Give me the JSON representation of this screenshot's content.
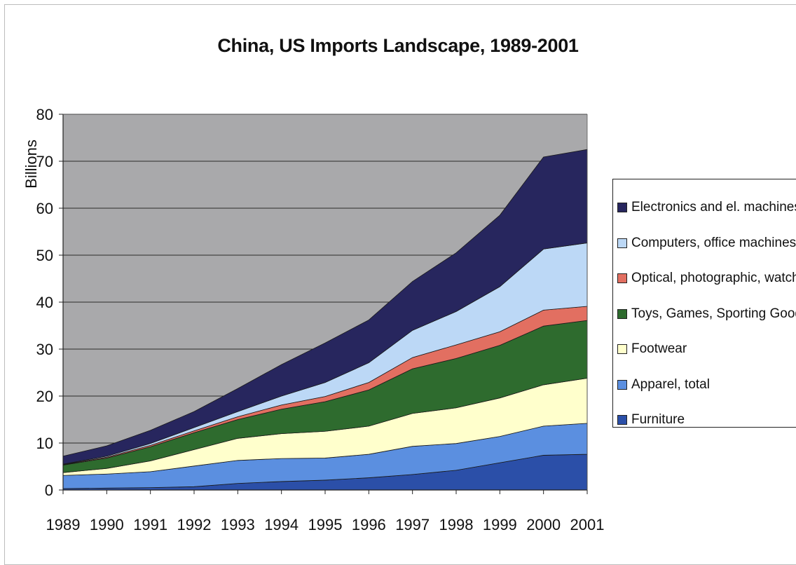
{
  "chart_data": {
    "type": "area",
    "title": "China, US Imports Landscape, 1989-2001",
    "ylabel": "Billions",
    "ylim": [
      0,
      80
    ],
    "yticks": [
      0,
      10,
      20,
      30,
      40,
      50,
      60,
      70,
      80
    ],
    "grid": true,
    "stacked": true,
    "legend_position": "right",
    "x": [
      "1989",
      "1990",
      "1991",
      "1992",
      "1993",
      "1994",
      "1995",
      "1996",
      "1997",
      "1998",
      "1999",
      "2000",
      "2001"
    ],
    "series": [
      {
        "name": "Furniture",
        "color": "#2b4fa8",
        "values": [
          0.3,
          0.4,
          0.5,
          0.7,
          1.4,
          1.8,
          2.1,
          2.6,
          3.3,
          4.2,
          5.8,
          7.4,
          7.6
        ]
      },
      {
        "name": "Apparel, total",
        "color": "#5b8fe0",
        "values": [
          2.8,
          3.0,
          3.4,
          4.4,
          4.9,
          4.9,
          4.7,
          5.0,
          6.0,
          5.7,
          5.6,
          6.2,
          6.6
        ]
      },
      {
        "name": "Footwear",
        "color": "#ffffcc",
        "values": [
          0.6,
          1.2,
          2.3,
          3.5,
          4.7,
          5.3,
          5.7,
          6.0,
          7.0,
          7.6,
          8.2,
          8.8,
          9.6
        ]
      },
      {
        "name": "Toys, Games, Sporting Goods",
        "color": "#2e6b2e",
        "values": [
          1.6,
          2.2,
          3.0,
          3.6,
          4.0,
          5.2,
          6.3,
          7.7,
          9.5,
          10.5,
          11.2,
          12.5,
          12.3
        ]
      },
      {
        "name": "Optical, photographic, watches",
        "color": "#e26f61",
        "values": [
          0.1,
          0.2,
          0.3,
          0.4,
          0.6,
          0.9,
          1.1,
          1.6,
          2.4,
          2.9,
          2.9,
          3.4,
          3.0
        ]
      },
      {
        "name": "Computers, office machines",
        "color": "#bcd8f6",
        "values": [
          0.1,
          0.2,
          0.4,
          0.7,
          1.1,
          1.9,
          3.0,
          4.2,
          5.8,
          7.1,
          9.6,
          13.0,
          13.5
        ]
      },
      {
        "name": "Electronics and el. machines",
        "color": "#27265e",
        "values": [
          1.7,
          2.2,
          2.8,
          3.4,
          4.9,
          6.7,
          8.4,
          9.1,
          10.4,
          12.5,
          15.2,
          19.6,
          19.9
        ]
      }
    ]
  }
}
